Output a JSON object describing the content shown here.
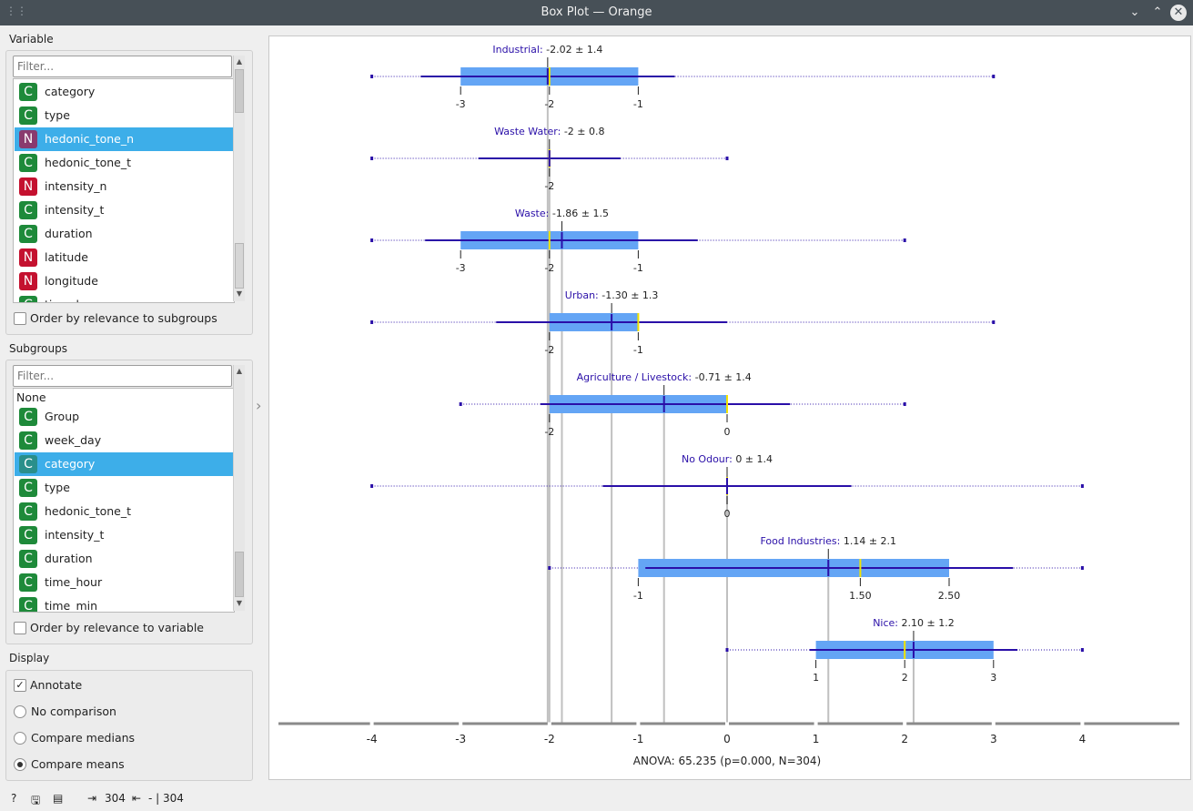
{
  "window": {
    "title": "Box Plot — Orange"
  },
  "variable": {
    "label": "Variable",
    "filter_placeholder": "Filter...",
    "items": [
      {
        "type": "C",
        "name": "category"
      },
      {
        "type": "C",
        "name": "type"
      },
      {
        "type": "N",
        "name": "hedonic_tone_n",
        "selected": true
      },
      {
        "type": "C",
        "name": "hedonic_tone_t"
      },
      {
        "type": "N",
        "name": "intensity_n"
      },
      {
        "type": "C",
        "name": "intensity_t"
      },
      {
        "type": "C",
        "name": "duration"
      },
      {
        "type": "N",
        "name": "latitude"
      },
      {
        "type": "N",
        "name": "longitude"
      },
      {
        "type": "C",
        "name": "time_h"
      }
    ],
    "order_label": "Order by relevance to subgroups"
  },
  "subgroups": {
    "label": "Subgroups",
    "filter_placeholder": "Filter...",
    "none_label": "None",
    "items": [
      {
        "type": "C",
        "name": "Group"
      },
      {
        "type": "C",
        "name": "week_day"
      },
      {
        "type": "C",
        "name": "category",
        "selected": true
      },
      {
        "type": "C",
        "name": "type"
      },
      {
        "type": "C",
        "name": "hedonic_tone_t"
      },
      {
        "type": "C",
        "name": "intensity_t"
      },
      {
        "type": "C",
        "name": "duration"
      },
      {
        "type": "C",
        "name": "time_hour"
      },
      {
        "type": "C",
        "name": "time_min"
      }
    ],
    "order_label": "Order by relevance to variable"
  },
  "display": {
    "label": "Display",
    "annotate_label": "Annotate",
    "annotate_checked": true,
    "options": [
      "No comparison",
      "Compare medians",
      "Compare means"
    ],
    "selected_option": "Compare means"
  },
  "status": {
    "in_count": "304",
    "out_count": "- | 304"
  },
  "colors": {
    "box": "#64a5f5",
    "line": "#2a0fa8",
    "median": "#f2e400",
    "mean_line": "#c0c0c0",
    "group_label": "#2a0fa8"
  },
  "chart_data": {
    "type": "box",
    "xlim": [
      -5,
      5
    ],
    "x_ticks": [
      -4,
      -3,
      -2,
      -1,
      0,
      1,
      2,
      3,
      4
    ],
    "footer": "ANOVA: 65.235 (p=0.000, N=304)",
    "groups": [
      {
        "name": "Industrial",
        "stat": "-2.02 ± 1.4",
        "mean": -2.02,
        "median": -2,
        "q1": -3,
        "q3": -1,
        "whisker_lo": -3.45,
        "whisker_hi": -0.59,
        "min": -4,
        "max": 3,
        "box_labels": [
          "-3",
          "-2",
          "-1"
        ],
        "label_values": [
          -3,
          -2,
          -1
        ]
      },
      {
        "name": "Waste Water",
        "stat": "-2 ± 0.8",
        "mean": -2,
        "median": -2,
        "q1": -2,
        "q3": -2,
        "whisker_lo": -2.8,
        "whisker_hi": -1.2,
        "min": -4,
        "max": 0,
        "box_labels": [
          "-2"
        ],
        "label_values": [
          -2
        ]
      },
      {
        "name": "Waste",
        "stat": "-1.86 ± 1.5",
        "mean": -1.86,
        "median": -2,
        "q1": -3,
        "q3": -1,
        "whisker_lo": -3.4,
        "whisker_hi": -0.33,
        "min": -4,
        "max": 2,
        "box_labels": [
          "-3",
          "-2",
          "-1"
        ],
        "label_values": [
          -3,
          -2,
          -1
        ]
      },
      {
        "name": "Urban",
        "stat": "-1.30 ± 1.3",
        "mean": -1.3,
        "median": -1,
        "q1": -2,
        "q3": -1,
        "whisker_lo": -2.6,
        "whisker_hi": 0,
        "min": -4,
        "max": 3,
        "box_labels": [
          "-2",
          "-1"
        ],
        "label_values": [
          -2,
          -1
        ]
      },
      {
        "name": "Agriculture / Livestock",
        "stat": "-0.71 ± 1.4",
        "mean": -0.71,
        "median": 0,
        "q1": -2,
        "q3": 0,
        "whisker_lo": -2.1,
        "whisker_hi": 0.71,
        "min": -3,
        "max": 2,
        "box_labels": [
          "-2",
          "0"
        ],
        "label_values": [
          -2,
          0
        ]
      },
      {
        "name": "No Odour",
        "stat": "0 ± 1.4",
        "mean": 0,
        "median": 0,
        "q1": 0,
        "q3": 0,
        "whisker_lo": -1.4,
        "whisker_hi": 1.4,
        "min": -4,
        "max": 4,
        "box_labels": [
          "0"
        ],
        "label_values": [
          0
        ]
      },
      {
        "name": "Food Industries",
        "stat": "1.14 ± 2.1",
        "mean": 1.14,
        "median": 1.5,
        "q1": -1,
        "q3": 2.5,
        "whisker_lo": -0.92,
        "whisker_hi": 3.22,
        "min": -2,
        "max": 4,
        "box_labels": [
          "-1",
          "1.50",
          "2.50"
        ],
        "label_values": [
          -1,
          1.5,
          2.5
        ]
      },
      {
        "name": "Nice",
        "stat": "2.10 ± 1.2",
        "mean": 2.1,
        "median": 2,
        "q1": 1,
        "q3": 3,
        "whisker_lo": 0.93,
        "whisker_hi": 3.27,
        "min": 0,
        "max": 4,
        "box_labels": [
          "1",
          "2",
          "3"
        ],
        "label_values": [
          1,
          2,
          3
        ]
      }
    ]
  }
}
